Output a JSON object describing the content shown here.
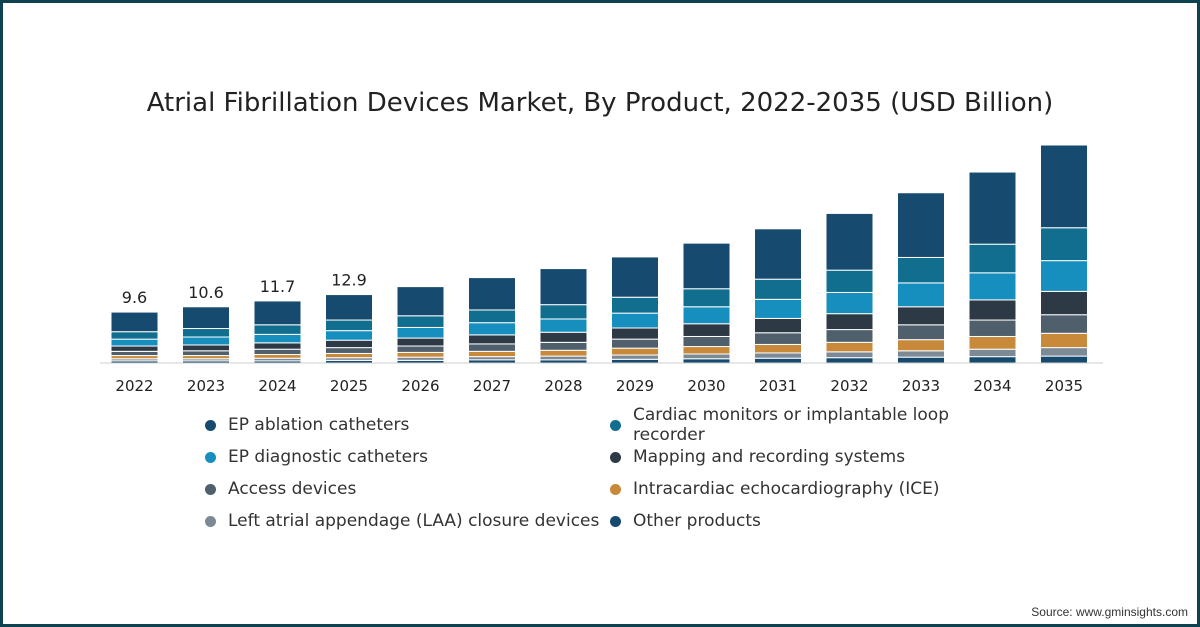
{
  "chart_data": {
    "type": "bar",
    "stacked": true,
    "title": "Atrial Fibrillation Devices Market, By Product, 2022-2035 (USD Billion)",
    "xlabel": "",
    "ylabel": "",
    "categories": [
      "2022",
      "2023",
      "2024",
      "2025",
      "2026",
      "2027",
      "2028",
      "2029",
      "2030",
      "2031",
      "2032",
      "2033",
      "2034",
      "2035"
    ],
    "totals": [
      9.6,
      10.6,
      11.7,
      12.9,
      14.4,
      16.1,
      17.8,
      20.0,
      22.6,
      25.3,
      28.2,
      32.1,
      36.0,
      41.1
    ],
    "total_labels": [
      "9.6",
      "10.6",
      "11.7",
      "12.9"
    ],
    "ylim": [
      0,
      45
    ],
    "series": [
      {
        "name": "Other products",
        "color": "#164a6e",
        "values": [
          0.4,
          0.4,
          0.4,
          0.5,
          0.5,
          0.6,
          0.6,
          0.7,
          0.8,
          0.9,
          1.0,
          1.1,
          1.2,
          1.3
        ]
      },
      {
        "name": "Left atrial appendage (LAA) closure devices",
        "color": "#7c8a96",
        "values": [
          0.4,
          0.4,
          0.5,
          0.5,
          0.6,
          0.6,
          0.7,
          0.8,
          0.9,
          1.0,
          1.1,
          1.2,
          1.4,
          1.6
        ]
      },
      {
        "name": "Intracardiac echocardiography (ICE)",
        "color": "#c9893a",
        "values": [
          0.6,
          0.6,
          0.7,
          0.8,
          0.9,
          1.0,
          1.1,
          1.3,
          1.4,
          1.6,
          1.8,
          2.1,
          2.4,
          2.7
        ]
      },
      {
        "name": "Access devices",
        "color": "#4f5f6c",
        "values": [
          0.8,
          0.9,
          1.0,
          1.1,
          1.2,
          1.4,
          1.5,
          1.7,
          1.9,
          2.2,
          2.4,
          2.8,
          3.1,
          3.5
        ]
      },
      {
        "name": "Mapping and recording systems",
        "color": "#2d3a45",
        "values": [
          1.0,
          1.1,
          1.2,
          1.4,
          1.5,
          1.7,
          1.9,
          2.1,
          2.4,
          2.7,
          3.0,
          3.4,
          3.8,
          4.4
        ]
      },
      {
        "name": "EP diagnostic catheters",
        "color": "#168fbf",
        "values": [
          1.3,
          1.5,
          1.6,
          1.8,
          2.0,
          2.3,
          2.5,
          2.8,
          3.2,
          3.6,
          4.0,
          4.5,
          5.1,
          5.8
        ]
      },
      {
        "name": "Cardiac monitors or implantable loop recorder",
        "color": "#126e8f",
        "values": [
          1.4,
          1.6,
          1.8,
          2.0,
          2.2,
          2.4,
          2.7,
          3.0,
          3.4,
          3.8,
          4.2,
          4.8,
          5.4,
          6.2
        ]
      },
      {
        "name": "EP ablation catheters",
        "color": "#164a6e",
        "values": [
          3.7,
          4.1,
          4.5,
          4.8,
          5.5,
          6.1,
          6.8,
          7.6,
          8.6,
          9.5,
          10.7,
          12.2,
          13.6,
          15.6
        ]
      }
    ]
  },
  "legend": [
    {
      "label": "EP ablation catheters",
      "color": "#164a6e"
    },
    {
      "label": "Cardiac monitors or implantable loop recorder",
      "color": "#126e8f"
    },
    {
      "label": "EP diagnostic catheters",
      "color": "#168fbf"
    },
    {
      "label": "Mapping and recording systems",
      "color": "#2d3a45"
    },
    {
      "label": "Access devices",
      "color": "#4f5f6c"
    },
    {
      "label": "Intracardiac echocardiography (ICE)",
      "color": "#c9893a"
    },
    {
      "label": "Left atrial appendage (LAA) closure devices",
      "color": "#7c8a96"
    },
    {
      "label": "Other products",
      "color": "#164a6e"
    }
  ],
  "source": "Source: www.gminsights.com"
}
